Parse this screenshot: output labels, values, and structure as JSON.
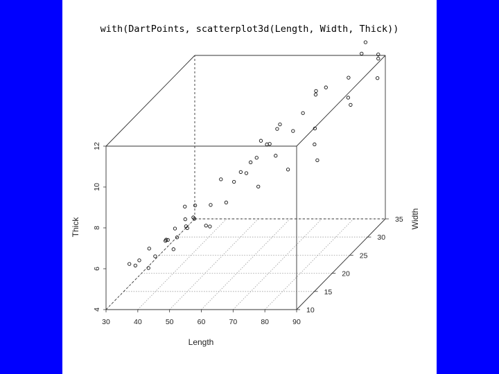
{
  "command": "with(DartPoints, scatterplot3d(Length, Width, Thick))",
  "chart_data": {
    "type": "scatter",
    "title": "",
    "xlabel": "Length",
    "ylabel": "Width",
    "zlabel": "Thick",
    "xlim": [
      30,
      90
    ],
    "ylim": [
      10,
      35
    ],
    "zlim": [
      4,
      12
    ],
    "xticks": [
      "30",
      "40",
      "50",
      "60",
      "70",
      "80",
      "90"
    ],
    "yticks": [
      "10",
      "15",
      "20",
      "25",
      "30",
      "35"
    ],
    "zticks": [
      "4",
      "6",
      "8",
      "10",
      "12"
    ],
    "grid": true,
    "projection_angle_deg": 40,
    "y_depth_scale": 1,
    "points": [
      [
        34,
        13,
        5.7
      ],
      [
        36,
        14,
        5.7
      ],
      [
        37,
        12,
        5.8
      ],
      [
        38,
        15,
        6.1
      ],
      [
        40,
        13,
        5.5
      ],
      [
        40,
        18,
        6.0
      ],
      [
        41,
        14,
        5.9
      ],
      [
        42,
        16,
        6.3
      ],
      [
        44,
        20,
        6.3
      ],
      [
        45,
        14,
        6.7
      ],
      [
        45,
        16,
        6.9
      ],
      [
        46,
        18,
        7.0
      ],
      [
        47,
        17,
        7.8
      ],
      [
        48,
        19,
        7.5
      ],
      [
        49,
        12,
        6.6
      ],
      [
        49,
        13,
        7.0
      ],
      [
        50,
        15,
        7.1
      ],
      [
        50,
        17,
        7.2
      ],
      [
        53,
        14,
        7.8
      ],
      [
        54,
        18,
        7.7
      ],
      [
        55,
        20,
        8.6
      ],
      [
        56,
        16,
        7.0
      ],
      [
        57,
        14,
        7.4
      ],
      [
        58,
        21,
        8.3
      ],
      [
        59,
        22,
        8.6
      ],
      [
        60,
        17,
        8.0
      ],
      [
        61,
        23,
        8.9
      ],
      [
        62,
        25,
        9.6
      ],
      [
        63,
        20,
        8.9
      ],
      [
        64,
        22,
        9.3
      ],
      [
        65,
        24,
        9.6
      ],
      [
        66,
        26,
        10.0
      ],
      [
        67,
        23,
        9.8
      ],
      [
        68,
        25,
        10.4
      ],
      [
        69,
        18,
        8.6
      ],
      [
        70,
        22,
        9.4
      ],
      [
        71,
        26,
        9.9
      ],
      [
        73,
        27,
        10.6
      ],
      [
        75,
        21,
        8.9
      ],
      [
        76,
        28,
        11.5
      ],
      [
        77,
        27,
        11.5
      ],
      [
        78,
        29,
        11.5
      ],
      [
        79,
        25,
        10.2
      ],
      [
        80,
        24,
        9.6
      ],
      [
        82,
        23,
        9.0
      ],
      [
        84,
        30,
        11.8
      ],
      [
        85,
        29,
        11.0
      ],
      [
        86,
        33,
        13.0
      ],
      [
        87,
        31,
        12.8
      ],
      [
        90,
        33,
        12.4
      ],
      [
        90,
        33,
        12.2
      ],
      [
        92,
        31,
        11.6
      ],
      [
        88,
        27,
        11.0
      ]
    ]
  }
}
